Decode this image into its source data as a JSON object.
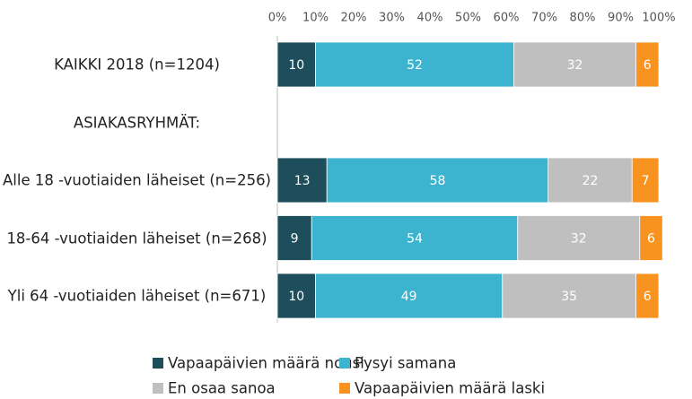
{
  "chart_data": {
    "type": "stacked_bar_horizontal",
    "categories": [
      "KAIKKI 2018 (n=1204)",
      "ASIAKASRYHMÄT:",
      "Alle 18 -vuotiaiden läheiset (n=256)",
      "18-64 -vuotiaiden läheiset (n=268)",
      "Yli 64 -vuotiaiden läheiset (n=671)"
    ],
    "series": [
      {
        "name": "Vapaapäivien määrä nousi",
        "color": "#1e4d5b",
        "values": [
          10,
          null,
          13,
          9,
          10
        ]
      },
      {
        "name": "Pysyi samana",
        "color": "#3db4cf",
        "values": [
          52,
          null,
          58,
          54,
          49
        ]
      },
      {
        "name": "En osaa sanoa",
        "color": "#bfbfbf",
        "values": [
          32,
          null,
          22,
          32,
          35
        ]
      },
      {
        "name": "Vapaapäivien määrä laski",
        "color": "#f7931e",
        "values": [
          6,
          null,
          7,
          6,
          6
        ]
      }
    ],
    "xlim": [
      0,
      100
    ],
    "xticks": [
      {
        "value": 0,
        "label": "0%"
      },
      {
        "value": 10,
        "label": "10%"
      },
      {
        "value": 20,
        "label": "20%"
      },
      {
        "value": 30,
        "label": "30%"
      },
      {
        "value": 40,
        "label": "40%"
      },
      {
        "value": 50,
        "label": "50%"
      },
      {
        "value": 60,
        "label": "60%"
      },
      {
        "value": 70,
        "label": "70%"
      },
      {
        "value": 80,
        "label": "80%"
      },
      {
        "value": 90,
        "label": "90%"
      },
      {
        "value": 100,
        "label": "100%"
      }
    ],
    "legend": "bottom"
  }
}
